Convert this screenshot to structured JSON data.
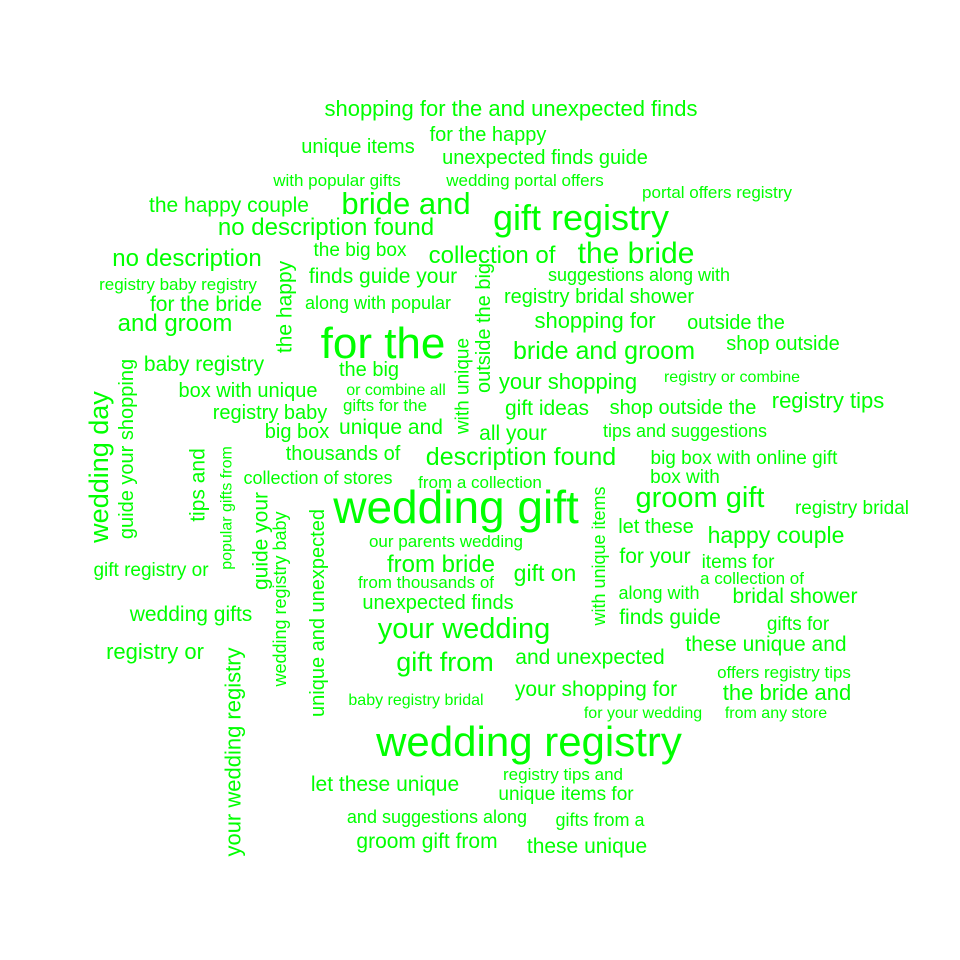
{
  "color": "#00ff00",
  "words": [
    {
      "text": "shopping for the and unexpected finds"
    },
    {
      "text": "unique items"
    },
    {
      "text": "for the happy"
    },
    {
      "text": "unexpected finds guide"
    },
    {
      "text": "with popular gifts"
    },
    {
      "text": "wedding portal offers"
    },
    {
      "text": "portal offers registry"
    },
    {
      "text": "the happy couple"
    },
    {
      "text": "bride and"
    },
    {
      "text": "gift registry"
    },
    {
      "text": "no description found"
    },
    {
      "text": "the big box"
    },
    {
      "text": "collection of"
    },
    {
      "text": "the bride"
    },
    {
      "text": "no description"
    },
    {
      "text": "finds guide your"
    },
    {
      "text": "suggestions along with"
    },
    {
      "text": "registry baby registry"
    },
    {
      "text": "registry bridal shower"
    },
    {
      "text": "for the bride"
    },
    {
      "text": "along with popular"
    },
    {
      "text": "and groom"
    },
    {
      "text": "shopping for"
    },
    {
      "text": "outside the"
    },
    {
      "text": "for the"
    },
    {
      "text": "shop outside"
    },
    {
      "text": "bride and groom"
    },
    {
      "text": "baby registry"
    },
    {
      "text": "the big"
    },
    {
      "text": "your shopping"
    },
    {
      "text": "registry or combine"
    },
    {
      "text": "box with unique"
    },
    {
      "text": "or combine all"
    },
    {
      "text": "registry tips"
    },
    {
      "text": "gifts for the"
    },
    {
      "text": "gift ideas"
    },
    {
      "text": "shop outside the"
    },
    {
      "text": "registry baby"
    },
    {
      "text": "big box"
    },
    {
      "text": "unique and"
    },
    {
      "text": "all your"
    },
    {
      "text": "tips and suggestions"
    },
    {
      "text": "thousands of"
    },
    {
      "text": "description found"
    },
    {
      "text": "big box with online gift"
    },
    {
      "text": "collection of stores"
    },
    {
      "text": "from a collection"
    },
    {
      "text": "box with"
    },
    {
      "text": "wedding gift"
    },
    {
      "text": "groom gift"
    },
    {
      "text": "registry bridal"
    },
    {
      "text": "let these"
    },
    {
      "text": "our parents wedding"
    },
    {
      "text": "happy couple"
    },
    {
      "text": "for your"
    },
    {
      "text": "from bride"
    },
    {
      "text": "items for"
    },
    {
      "text": "gift registry or"
    },
    {
      "text": "gift on"
    },
    {
      "text": "from thousands of"
    },
    {
      "text": "a collection of"
    },
    {
      "text": "along with"
    },
    {
      "text": "bridal shower"
    },
    {
      "text": "unexpected finds"
    },
    {
      "text": "wedding gifts"
    },
    {
      "text": "finds guide"
    },
    {
      "text": "gifts for"
    },
    {
      "text": "your wedding"
    },
    {
      "text": "these unique and"
    },
    {
      "text": "registry or"
    },
    {
      "text": "and unexpected"
    },
    {
      "text": "gift from"
    },
    {
      "text": "offers registry tips"
    },
    {
      "text": "your shopping for"
    },
    {
      "text": "the bride and"
    },
    {
      "text": "baby registry bridal"
    },
    {
      "text": "for your wedding"
    },
    {
      "text": "from any store"
    },
    {
      "text": "wedding registry"
    },
    {
      "text": "registry tips and"
    },
    {
      "text": "let these unique"
    },
    {
      "text": "unique items for"
    },
    {
      "text": "and suggestions along"
    },
    {
      "text": "gifts from a"
    },
    {
      "text": "groom gift from"
    },
    {
      "text": "these unique"
    },
    {
      "text": "the happy"
    },
    {
      "text": "outside the big"
    },
    {
      "text": "with unique"
    },
    {
      "text": "wedding day"
    },
    {
      "text": "guide your shopping"
    },
    {
      "text": "tips and"
    },
    {
      "text": "popular gifts from"
    },
    {
      "text": "guide your"
    },
    {
      "text": "wedding registry baby"
    },
    {
      "text": "unique and unexpected"
    },
    {
      "text": "with unique items"
    },
    {
      "text": "your wedding registry"
    }
  ]
}
